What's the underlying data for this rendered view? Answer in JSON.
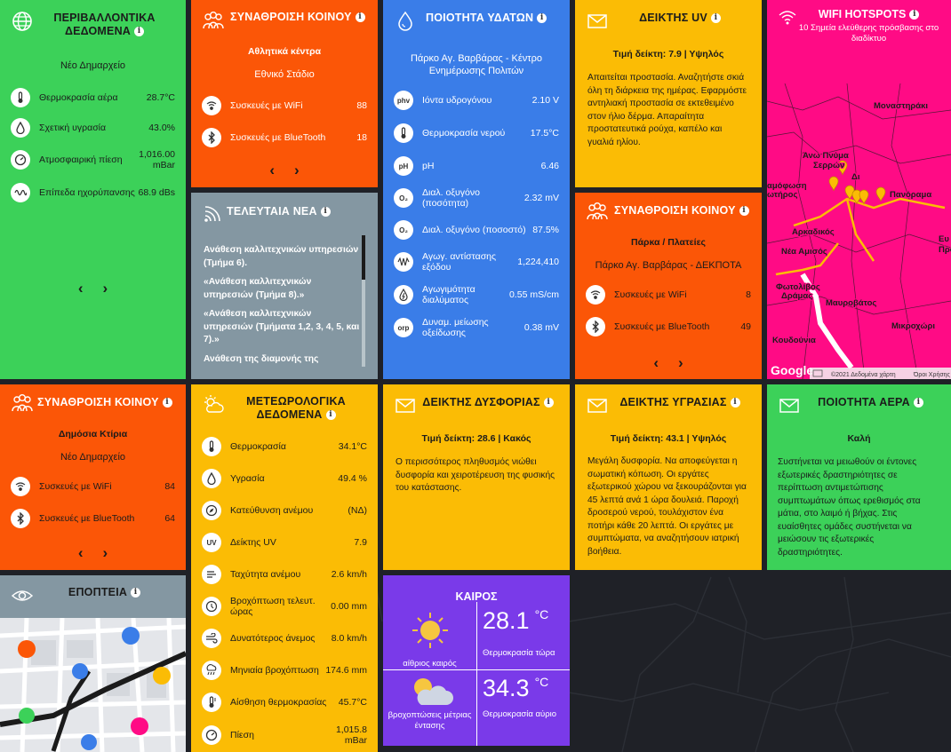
{
  "env": {
    "title": "ΠΕΡΙΒΑΛΛΟΝΤΙΚΑ ΔΕΔΟΜΕΝΑ",
    "location": "Νέο Δημαρχείο",
    "rows": [
      {
        "label": "Θερμοκρασία αέρα",
        "value": "28.7°C",
        "icon": "thermometer-icon"
      },
      {
        "label": "Σχετική υγρασία",
        "value": "43.0%",
        "icon": "drop-icon"
      },
      {
        "label": "Ατμοσφαιρική πίεση",
        "value": "1,016.00 mBar",
        "icon": "gauge-icon"
      },
      {
        "label": "Επίπεδα ηχορύπανσης",
        "value": "68.9 dBs",
        "icon": "sound-wave-icon"
      }
    ]
  },
  "crowd1": {
    "title": "ΣΥΝΑΘΡΟΙΣΗ ΚΟΙΝΟΥ",
    "category": "Αθλητικά κέντρα",
    "location": "Εθνικό Στάδιο",
    "wifi_label": "Συσκευές με WiFi",
    "wifi_value": "88",
    "bt_label": "Συσκευές με BlueTooth",
    "bt_value": "18"
  },
  "news": {
    "title": "ΤΕΛΕΥΤΑΙΑ ΝΕΑ",
    "items": [
      "Ανάθεση καλλιτεχνικών υπηρεσιών (Τμήμα 6).",
      "«Ανάθεση καλλιτεχνικών υπηρεσιών (Τμήμα 8).»",
      "«Ανάθεση καλλιτεχνικών υπηρεσιών (Τμήματα 1,2, 3, 4, 5, και 7).»",
      "Ανάθεση της διαμονής της Προέδρου της Δημοκρατίας καθώς"
    ]
  },
  "water": {
    "title": "ΠΟΙΟΤΗΤΑ ΥΔΑΤΩΝ",
    "location": "Πάρκο Αγ. Βαρβάρας - Κέντρο Ενημέρωσης Πολιτών",
    "rows": [
      {
        "icon_text": "phv",
        "label": "Ιόντα υδρογόνου",
        "value": "2.10 V"
      },
      {
        "icon_text": "",
        "label": "Θερμοκρασία νερού",
        "value": "17.5°C"
      },
      {
        "icon_text": "pH",
        "label": "pH",
        "value": "6.46"
      },
      {
        "icon_text": "O₂",
        "label": "Διαλ. οξυγόνο (ποσότητα)",
        "value": "2.32 mV"
      },
      {
        "icon_text": "O₂",
        "label": "Διαλ. οξυγόνο (ποσοστό)",
        "value": "87.5%"
      },
      {
        "icon_text": "",
        "label": "Αγωγ. αντίστασης εξόδου",
        "value": "1,224,410"
      },
      {
        "icon_text": "",
        "label": "Αγωγιμότητα διαλύματος",
        "value": "0.55 mS/cm"
      },
      {
        "icon_text": "orp",
        "label": "Δυναμ. μείωσης οξείδωσης",
        "value": "0.38 mV"
      }
    ]
  },
  "uv": {
    "title": "ΔΕΙΚΤΗΣ UV",
    "value": "Τιμή δείκτη: 7.9 | Υψηλός",
    "text": "Απαιτείται προστασία. Αναζητήστε σκιά όλη τη διάρκεια της ημέρας. Εφαρμόστε αντηλιακή προστασία σε εκτεθειμένο στον ήλιο δέρμα. Απαραίτητα προστατευτικά ρούχα, καπέλο και γυαλιά ηλίου."
  },
  "crowd2": {
    "title": "ΣΥΝΑΘΡΟΙΣΗ ΚΟΙΝΟΥ",
    "category": "Πάρκα / Πλατείες",
    "location": "Πάρκο Αγ. Βαρβάρας - ΔΕΚΠΟΤΑ",
    "wifi_label": "Συσκευές με WiFi",
    "wifi_value": "8",
    "bt_label": "Συσκευές με BlueTooth",
    "bt_value": "49"
  },
  "hotspots": {
    "title": "WIFI HOTSPOTS",
    "subtitle": "10 Σημεία ελεύθερης πρόσβασης στο διαδίκτυο",
    "places": [
      "Μοναστηράκι",
      "Άνω Πνύμα",
      "Σερρών",
      "Δι",
      "αμόφωση",
      "ωτήρος",
      "Πανόραμα",
      "Αρκαδικός",
      "Νέα Αμισός",
      "Ευ",
      "Προ",
      "Φωτολίβος",
      "Δράμας",
      "Μαυροβάτος",
      "Κουδούνια",
      "Μικροχώρι"
    ],
    "google": "Google",
    "attribution": "©2021 Δεδομένα χάρτη",
    "terms": "Όροι Χρήσης"
  },
  "crowd3": {
    "title": "ΣΥΝΑΘΡΟΙΣΗ ΚΟΙΝΟΥ",
    "category": "Δημόσια Κτίρια",
    "location": "Νέο Δημαρχείο",
    "wifi_label": "Συσκευές με WiFi",
    "wifi_value": "84",
    "bt_label": "Συσκευές με BlueTooth",
    "bt_value": "64"
  },
  "meteo": {
    "title": "ΜΕΤΕΩΡΟΛΟΓΙΚΑ ΔΕΔΟΜΕΝΑ",
    "rows": [
      {
        "label": "Θερμοκρασία",
        "value": "34.1°C",
        "icon": "thermometer-icon"
      },
      {
        "label": "Υγρασία",
        "value": "49.4 %",
        "icon": "drop-icon"
      },
      {
        "label": "Κατεύθυνση ανέμου",
        "value": "(ΝΔ)",
        "icon": "compass-icon"
      },
      {
        "label": "Δείκτης UV",
        "value": "7.9",
        "icon": "uv-icon"
      },
      {
        "label": "Ταχύτητα ανέμου",
        "value": "2.6 km/h",
        "icon": "wind-speed-icon"
      },
      {
        "label": "Βροχόπτωση τελευτ. ώρας",
        "value": "0.00 mm",
        "icon": "rain-hour-icon"
      },
      {
        "label": "Δυνατότερος άνεμος",
        "value": "8.0 km/h",
        "icon": "strong-wind-icon"
      },
      {
        "label": "Μηνιαία βροχόπτωση",
        "value": "174.6 mm",
        "icon": "monthly-rain-icon"
      },
      {
        "label": "Αίσθηση θερμοκρασίας",
        "value": "45.7°C",
        "icon": "feels-like-icon"
      },
      {
        "label": "Πίεση",
        "value": "1,015.8 mBar",
        "icon": "pressure-icon"
      }
    ]
  },
  "discomfort": {
    "title": "ΔΕΙΚΤΗΣ ΔΥΣΦΟΡΙΑΣ",
    "value": "Τιμή δείκτη: 28.6 | Κακός",
    "text": "Ο περισσότερος πληθυσμός νιώθει δυσφορία και χειροτέρευση της φυσικής του κατάστασης."
  },
  "humidity": {
    "title": "ΔΕΙΚΤΗΣ ΥΓΡΑΣΙΑΣ",
    "value": "Τιμή δείκτη: 43.1 | Υψηλός",
    "text": "Μεγάλη δυσφορία. Να αποφεύγεται η σωματική κόπωση. Οι εργάτες εξωτερικού χώρου να ξεκουράζονται για 45 λεπτά ανά 1 ώρα δουλειά. Παροχή δροσερού νερού, τουλάχιστον ένα ποτήρι κάθε 20 λεπτά. Οι εργάτες με συμπτώματα, να αναζητήσουν ιατρική βοήθεια."
  },
  "air": {
    "title": "ΠΟΙΟΤΗΤΑ ΑΕΡΑ",
    "value": "Καλή",
    "text": "Συστήνεται να μειωθούν οι έντονες εξωτερικές δραστηριότητες σε περίπτωση αντιμετώπισης συμπτωμάτων όπως ερεθισμός στα μάτια, στο λαιμό ή βήχας. Στις ευαίσθητες ομάδες συστήνεται να μειώσουν τις εξωτερικές δραστηριότητες."
  },
  "surveillance": {
    "title": "ΕΠΟΠΤΕΙΑ"
  },
  "weather": {
    "title": "ΚΑΙΡΟΣ",
    "now_temp": "28.1",
    "now_unit": "°C",
    "now_condition": "αίθριος καιρός",
    "now_label": "Θερμοκρασία τώρα",
    "tomorrow_temp": "34.3",
    "tomorrow_unit": "°C",
    "tomorrow_condition": "βροχοπτώσεις μέτριας έντασης",
    "tomorrow_label": "Θερμοκρασία αύριο"
  }
}
